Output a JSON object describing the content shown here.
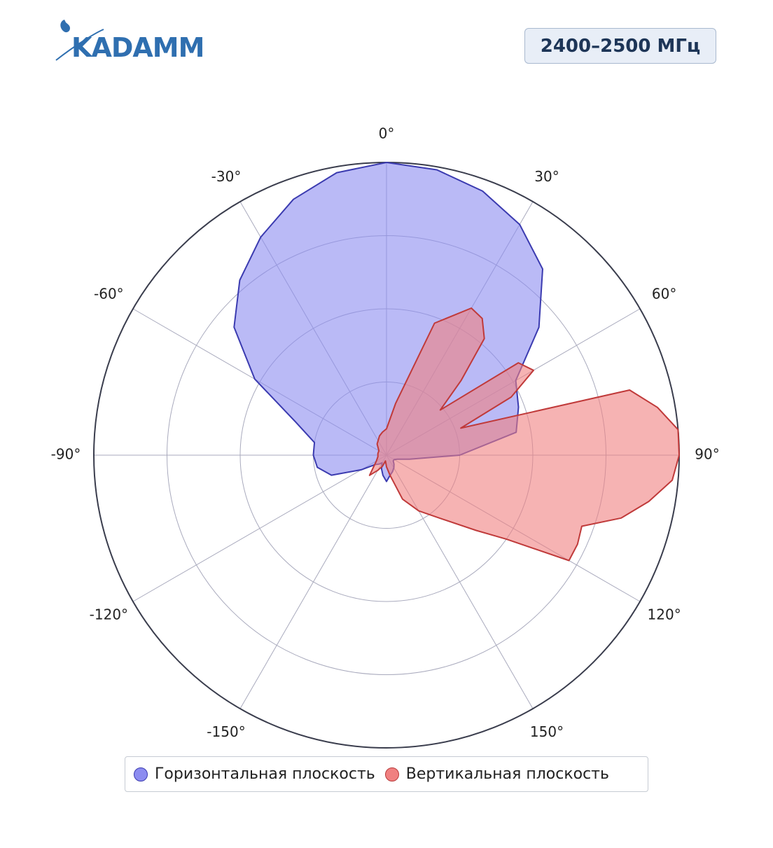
{
  "header": {
    "logo_text": "KADAMM",
    "frequency_badge": "2400–2500 МГц"
  },
  "colors": {
    "horizontal_fill": "#8c8cf0",
    "horizontal_line": "#3b3bb0",
    "vertical_fill": "#f08080",
    "vertical_line": "#c03a3a",
    "grid": "#a9aabd",
    "outer_ring": "#3a3d4d",
    "logo": "#2f6fb0"
  },
  "chart_data": {
    "type": "polar-area",
    "title": "",
    "angular_ticks": [
      "0°",
      "30°",
      "60°",
      "90°",
      "120°",
      "150°",
      "-150°",
      "-120°",
      "-90°",
      "-60°",
      "-30°"
    ],
    "angular_tick_values": [
      0,
      30,
      60,
      90,
      120,
      150,
      -150,
      -120,
      -90,
      -60,
      -30
    ],
    "radial_range": [
      0,
      1
    ],
    "radial_grid_rings": 4,
    "grid": true,
    "legend_position": "bottom",
    "series": [
      {
        "name": "Горизонтальная плоскость",
        "angles": [
          0,
          10,
          20,
          30,
          40,
          50,
          60,
          70,
          80,
          90,
          100,
          110,
          120,
          130,
          140,
          150,
          160,
          170,
          180,
          190,
          200,
          210,
          220,
          230,
          240,
          250,
          260,
          270,
          280,
          290,
          300,
          310,
          320,
          330,
          340,
          350,
          360
        ],
        "values": [
          1.0,
          0.99,
          0.96,
          0.91,
          0.83,
          0.68,
          0.51,
          0.48,
          0.45,
          0.25,
          0.08,
          0.04,
          0.03,
          0.03,
          0.04,
          0.05,
          0.06,
          0.07,
          0.09,
          0.07,
          0.05,
          0.03,
          0.04,
          0.05,
          0.1,
          0.2,
          0.24,
          0.25,
          0.25,
          0.33,
          0.52,
          0.68,
          0.78,
          0.86,
          0.93,
          0.98,
          1.0
        ]
      },
      {
        "name": "Вертикальная плоскость",
        "angles": [
          0,
          10,
          20,
          30,
          35,
          40,
          45,
          50,
          55,
          60,
          65,
          70,
          75,
          80,
          85,
          90,
          95,
          100,
          105,
          110,
          115,
          120,
          125,
          130,
          140,
          150,
          160,
          170,
          180,
          190,
          200,
          210,
          220,
          240,
          260,
          280,
          300,
          320,
          340,
          350,
          360
        ],
        "values": [
          0.09,
          0.18,
          0.48,
          0.58,
          0.57,
          0.52,
          0.36,
          0.24,
          0.55,
          0.58,
          0.47,
          0.27,
          0.86,
          0.94,
          1.0,
          1.0,
          0.98,
          0.91,
          0.83,
          0.71,
          0.72,
          0.72,
          0.5,
          0.4,
          0.28,
          0.22,
          0.16,
          0.07,
          0.04,
          0.02,
          0.04,
          0.06,
          0.09,
          0.04,
          0.03,
          0.03,
          0.03,
          0.05,
          0.07,
          0.08,
          0.09
        ]
      }
    ]
  },
  "legend": {
    "items": [
      {
        "label": "Горизонтальная плоскость"
      },
      {
        "label": "Вертикальная плоскость"
      }
    ]
  }
}
